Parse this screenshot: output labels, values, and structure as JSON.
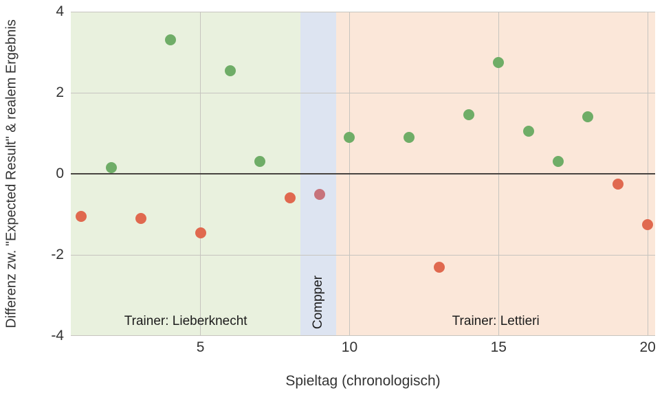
{
  "page": {
    "background": "#ffffff"
  },
  "chart_data": {
    "type": "scatter",
    "title": "",
    "xlabel": "Spieltag (chronologisch)",
    "ylabel": "Differenz zw. \"Expected Result\" & realem Ergebnis",
    "xlim": [
      0.65,
      20.25
    ],
    "ylim": [
      -4,
      4
    ],
    "x_ticks": [
      5,
      10,
      15,
      20
    ],
    "y_ticks": [
      4,
      2,
      0,
      -2,
      -4
    ],
    "grid": true,
    "legend": false,
    "zero_line": 0,
    "colors": {
      "positive_point": "#6fad67",
      "negative_point": "#e0694f",
      "compper_point": "#c7737b",
      "grid_line": "#c6c4bf",
      "zero_line": "#474340",
      "axis_text": "#333333",
      "annotation_text": "#1c1c1c",
      "region_lieberknecht": "#e9f1de",
      "region_compper": "#dde4f1",
      "region_lettieri": "#fbe7d9"
    },
    "regions": [
      {
        "id": "lieberknecht",
        "label": "Trainer: Lieberknecht",
        "x_start": 0.65,
        "x_end": 8.36,
        "color": "#e9f1de",
        "label_orientation": "horizontal"
      },
      {
        "id": "compper",
        "label": "Compper",
        "x_start": 8.36,
        "x_end": 9.56,
        "color": "#dde4f1",
        "label_orientation": "vertical"
      },
      {
        "id": "lettieri",
        "label": "Trainer: Lettieri",
        "x_start": 9.56,
        "x_end": 20.25,
        "color": "#fbe7d9",
        "label_orientation": "horizontal"
      }
    ],
    "points": [
      {
        "x": 1,
        "y": -1.05,
        "color": "#e0694f"
      },
      {
        "x": 2,
        "y": 0.15,
        "color": "#6fad67"
      },
      {
        "x": 3,
        "y": -1.1,
        "color": "#e0694f"
      },
      {
        "x": 4,
        "y": 3.3,
        "color": "#6fad67"
      },
      {
        "x": 5,
        "y": -1.45,
        "color": "#e0694f"
      },
      {
        "x": 6,
        "y": 2.55,
        "color": "#6fad67"
      },
      {
        "x": 7,
        "y": 0.3,
        "color": "#6fad67"
      },
      {
        "x": 8,
        "y": -0.6,
        "color": "#e0694f"
      },
      {
        "x": 9,
        "y": -0.5,
        "color": "#c7737b"
      },
      {
        "x": 10,
        "y": 0.9,
        "color": "#6fad67"
      },
      {
        "x": 12,
        "y": 0.9,
        "color": "#6fad67"
      },
      {
        "x": 13,
        "y": -2.3,
        "color": "#e0694f"
      },
      {
        "x": 14,
        "y": 1.45,
        "color": "#6fad67"
      },
      {
        "x": 15,
        "y": 2.75,
        "color": "#6fad67"
      },
      {
        "x": 16,
        "y": 1.05,
        "color": "#6fad67"
      },
      {
        "x": 17,
        "y": 0.3,
        "color": "#6fad67"
      },
      {
        "x": 18,
        "y": 1.4,
        "color": "#6fad67"
      },
      {
        "x": 19,
        "y": -0.25,
        "color": "#e0694f"
      },
      {
        "x": 20,
        "y": -1.25,
        "color": "#e0694f"
      }
    ]
  }
}
